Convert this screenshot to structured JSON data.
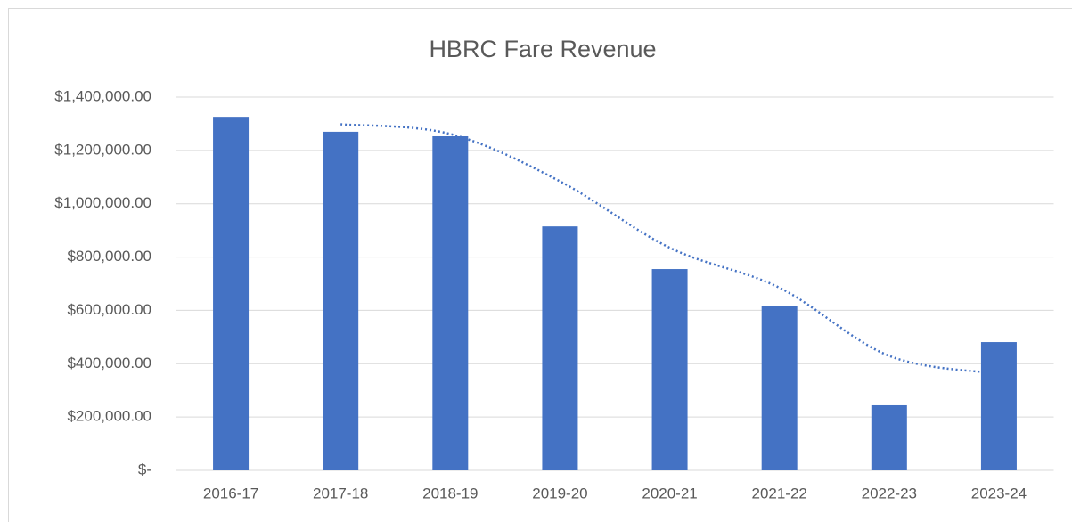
{
  "chart_data": {
    "type": "bar",
    "title": "HBRC Fare Revenue",
    "categories": [
      "2016-17",
      "2017-18",
      "2018-19",
      "2019-20",
      "2020-21",
      "2021-22",
      "2022-23",
      "2023-24"
    ],
    "values": [
      1326000,
      1270000,
      1253000,
      915000,
      755000,
      615000,
      244000,
      481000
    ],
    "color": "#4472c4",
    "ylim": [
      0,
      1400000
    ],
    "yticks": [
      {
        "value": 0,
        "label": "$-"
      },
      {
        "value": 200000,
        "label": "$200,000.00"
      },
      {
        "value": 400000,
        "label": "$400,000.00"
      },
      {
        "value": 600000,
        "label": "$600,000.00"
      },
      {
        "value": 800000,
        "label": "$800,000.00"
      },
      {
        "value": 1000000,
        "label": "$1,000,000.00"
      },
      {
        "value": 1200000,
        "label": "$1,200,000.00"
      },
      {
        "value": 1400000,
        "label": "$1,400,000.00"
      }
    ],
    "grid": true,
    "trendline": {
      "kind": "moving-average",
      "period": 2,
      "style": "dotted",
      "color": "#4472c4"
    }
  }
}
